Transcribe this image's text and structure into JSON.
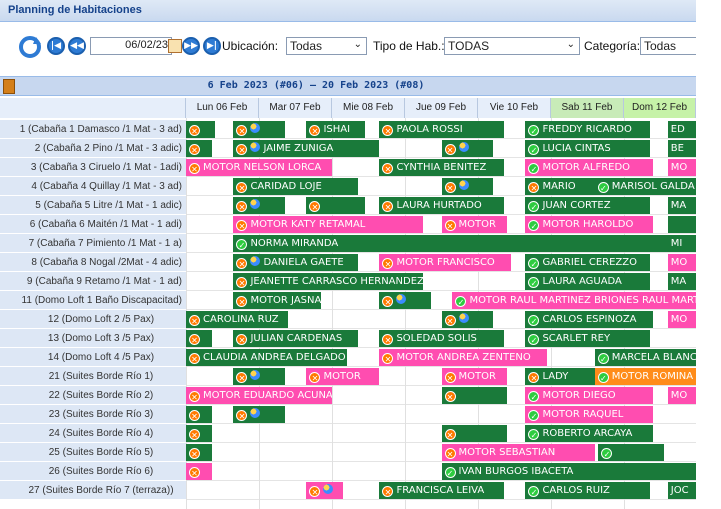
{
  "panel": {
    "title": "Planning de Habitaciones"
  },
  "toolbar": {
    "date": "06/02/23",
    "ubicacion_label": "Ubicación:",
    "ubicacion_value": "Todas",
    "tipo_label": "Tipo de Hab.:",
    "tipo_value": "TODAS",
    "categoria_label": "Categoría:",
    "categoria_value": "Todas"
  },
  "period": "6 Feb 2023 (#06) – 20 Feb 2023 (#08)",
  "days": [
    {
      "label": "Lun 06 Feb",
      "kind": "weekday"
    },
    {
      "label": "Mar 07 Feb",
      "kind": "weekday"
    },
    {
      "label": "Mie 08 Feb",
      "kind": "weekday"
    },
    {
      "label": "Jue 09 Feb",
      "kind": "weekday"
    },
    {
      "label": "Vie 10 Feb",
      "kind": "weekday"
    },
    {
      "label": "Sab 11 Feb",
      "kind": "sat"
    },
    {
      "label": "Dom 12 Feb",
      "kind": "sun"
    }
  ],
  "rooms": [
    {
      "label": "1 (Cabaña 1 Damasco /1 Mat - 3 ad)"
    },
    {
      "label": "2 (Cabaña 2 Pino /1 Mat - 3 adic)"
    },
    {
      "label": "3 (Cabaña 3 Ciruelo /1 Mat - 1adi)"
    },
    {
      "label": "4 (Cabaña 4 Quillay /1 Mat - 3 ad)"
    },
    {
      "label": "5 (Cabaña 5 Litre /1 Mat - 1 adic)"
    },
    {
      "label": "6 (Cabaña 6 Maitén /1 Mat - 1 adi)"
    },
    {
      "label": "7 (Cabaña 7 Pimiento /1 Mat - 1 a)"
    },
    {
      "label": "8 (Cabaña 8 Nogal /2Mat - 4 adic)"
    },
    {
      "label": "9 (Cabaña 9 Retamo /1 Mat - 1 ad)"
    },
    {
      "label": "11 (Domo Loft 1 Baño Discapacitad)"
    },
    {
      "label": "12 (Domo Loft 2 /5 Pax)",
      "indent": true
    },
    {
      "label": "13 (Domo Loft 3 /5 Pax)",
      "indent": true
    },
    {
      "label": "14 (Domo Loft 4 /5 Pax)",
      "indent": true
    },
    {
      "label": "21 (Suites Borde Río 1)",
      "indent": true
    },
    {
      "label": "22 (Suites Borde Río 2)",
      "indent": true
    },
    {
      "label": "23 (Suites Borde Río 3)",
      "indent": true
    },
    {
      "label": "24 (Suites Borde Río 4)",
      "indent": true
    },
    {
      "label": "25 (Suites Borde Río 5)",
      "indent": true
    },
    {
      "label": "26 (Suites Borde Río 6)",
      "indent": true
    },
    {
      "label": "27 (Suites Borde Río 7 (terraza))",
      "indent": true
    }
  ],
  "bookings": [
    {
      "row": 0,
      "start": 0,
      "len": 0.4,
      "color": "g",
      "icon": "x",
      "text": ""
    },
    {
      "row": 0,
      "start": 0.65,
      "len": 0.7,
      "color": "g",
      "icon": "x",
      "pax": true,
      "text": ""
    },
    {
      "row": 0,
      "start": 1.65,
      "len": 0.8,
      "color": "g",
      "icon": "x",
      "text": "ISHAI"
    },
    {
      "row": 0,
      "start": 2.65,
      "len": 1.7,
      "color": "g",
      "icon": "x",
      "text": "PAOLA ROSSI"
    },
    {
      "row": 0,
      "start": 4.65,
      "len": 1.7,
      "color": "g",
      "icon": "ok",
      "text": "FREDDY RICARDO"
    },
    {
      "row": 0,
      "start": 6.6,
      "len": 0.4,
      "color": "g",
      "icon": "",
      "text": "ED"
    },
    {
      "row": 1,
      "start": 0,
      "len": 0.35,
      "color": "g",
      "icon": "x",
      "text": ""
    },
    {
      "row": 1,
      "start": 0.65,
      "len": 2.0,
      "color": "g",
      "icon": "x",
      "pax": true,
      "text": "JAIME ZUNIGA"
    },
    {
      "row": 1,
      "start": 3.5,
      "len": 0.7,
      "color": "g",
      "icon": "x",
      "pax": true,
      "text": ""
    },
    {
      "row": 1,
      "start": 4.65,
      "len": 1.7,
      "color": "g",
      "icon": "ok",
      "text": "LUCIA CINTAS"
    },
    {
      "row": 1,
      "start": 6.6,
      "len": 0.4,
      "color": "g",
      "icon": "",
      "text": "BE"
    },
    {
      "row": 2,
      "start": 0,
      "len": 2.0,
      "color": "p",
      "icon": "x",
      "text": "MOTOR NELSON LORCA"
    },
    {
      "row": 2,
      "start": 2.65,
      "len": 1.7,
      "color": "g",
      "icon": "x",
      "text": "CYNTHIA BENITEZ"
    },
    {
      "row": 2,
      "start": 4.65,
      "len": 1.75,
      "color": "p",
      "icon": "ok",
      "text": "MOTOR ALFREDO"
    },
    {
      "row": 2,
      "start": 6.6,
      "len": 0.4,
      "color": "p",
      "icon": "",
      "text": "MO"
    },
    {
      "row": 3,
      "start": 0.65,
      "len": 1.7,
      "color": "g",
      "icon": "x",
      "text": "CARIDAD LOJE"
    },
    {
      "row": 3,
      "start": 3.5,
      "len": 0.7,
      "color": "g",
      "icon": "x",
      "pax": true,
      "text": ""
    },
    {
      "row": 3,
      "start": 4.65,
      "len": 0.95,
      "color": "g",
      "icon": "x",
      "text": "MARIO"
    },
    {
      "row": 3,
      "start": 5.6,
      "len": 1.4,
      "color": "g",
      "icon": "ok",
      "text": "MARISOL GALDA"
    },
    {
      "row": 4,
      "start": 0.65,
      "len": 0.7,
      "color": "g",
      "icon": "x",
      "pax": true,
      "text": ""
    },
    {
      "row": 4,
      "start": 1.65,
      "len": 0.8,
      "color": "g",
      "icon": "x",
      "text": ""
    },
    {
      "row": 4,
      "start": 2.65,
      "len": 1.7,
      "color": "g",
      "icon": "x",
      "text": "LAURA HURTADO"
    },
    {
      "row": 4,
      "start": 4.65,
      "len": 1.7,
      "color": "g",
      "icon": "ok",
      "text": "JUAN CORTEZ"
    },
    {
      "row": 4,
      "start": 6.6,
      "len": 0.4,
      "color": "g",
      "icon": "",
      "text": "MA"
    },
    {
      "row": 5,
      "start": 0.65,
      "len": 2.6,
      "color": "p",
      "icon": "x",
      "text": "MOTOR KATY RETAMAL"
    },
    {
      "row": 5,
      "start": 3.5,
      "len": 0.9,
      "color": "p",
      "icon": "x",
      "text": "MOTOR"
    },
    {
      "row": 5,
      "start": 4.65,
      "len": 1.75,
      "color": "p",
      "icon": "ok",
      "text": "MOTOR HAROLDO"
    },
    {
      "row": 5,
      "start": 6.6,
      "len": 0.4,
      "color": "g",
      "icon": "",
      "text": ""
    },
    {
      "row": 6,
      "start": 0.65,
      "len": 5.95,
      "color": "g",
      "icon": "ok",
      "text": "NORMA MIRANDA"
    },
    {
      "row": 6,
      "start": 6.6,
      "len": 0.4,
      "color": "g",
      "icon": "",
      "text": "MI"
    },
    {
      "row": 7,
      "start": 0.65,
      "len": 1.7,
      "color": "g",
      "icon": "x",
      "pax": true,
      "text": "DANIELA GAETE"
    },
    {
      "row": 7,
      "start": 2.65,
      "len": 1.8,
      "color": "p",
      "icon": "x",
      "text": "MOTOR FRANCISCO"
    },
    {
      "row": 7,
      "start": 4.65,
      "len": 1.7,
      "color": "g",
      "icon": "ok",
      "text": "GABRIEL CEREZZO"
    },
    {
      "row": 7,
      "start": 6.6,
      "len": 0.4,
      "color": "p",
      "icon": "",
      "text": "MO"
    },
    {
      "row": 8,
      "start": 0.65,
      "len": 2.6,
      "color": "g",
      "icon": "x",
      "text": "JEANETTE CARRASCO HERNANDEZ"
    },
    {
      "row": 8,
      "start": 4.65,
      "len": 1.7,
      "color": "g",
      "icon": "ok",
      "text": "LAURA AGUADA"
    },
    {
      "row": 8,
      "start": 6.6,
      "len": 0.4,
      "color": "g",
      "icon": "",
      "text": "MA"
    },
    {
      "row": 9,
      "start": 0.65,
      "len": 1.2,
      "color": "g",
      "icon": "x",
      "text": "MOTOR JASNA"
    },
    {
      "row": 9,
      "start": 2.65,
      "len": 0.7,
      "color": "g",
      "icon": "x",
      "pax": true,
      "text": ""
    },
    {
      "row": 9,
      "start": 3.65,
      "len": 3.35,
      "color": "p",
      "icon": "ok",
      "text": "MOTOR RAUL MARTINEZ BRIONES RAUL MARTI"
    },
    {
      "row": 10,
      "start": 0,
      "len": 1.4,
      "color": "g",
      "icon": "x",
      "text": "CAROLINA RUZ"
    },
    {
      "row": 10,
      "start": 3.5,
      "len": 0.7,
      "color": "g",
      "icon": "x",
      "pax": true,
      "text": ""
    },
    {
      "row": 10,
      "start": 4.65,
      "len": 1.75,
      "color": "g",
      "icon": "ok",
      "text": "CARLOS ESPINOZA"
    },
    {
      "row": 10,
      "start": 6.6,
      "len": 0.4,
      "color": "p",
      "icon": "",
      "text": "MO"
    },
    {
      "row": 11,
      "start": 0,
      "len": 0.35,
      "color": "g",
      "icon": "x",
      "text": ""
    },
    {
      "row": 11,
      "start": 0.65,
      "len": 1.7,
      "color": "g",
      "icon": "x",
      "text": "JULIAN CARDENAS"
    },
    {
      "row": 11,
      "start": 2.65,
      "len": 1.7,
      "color": "g",
      "icon": "x",
      "text": "SOLEDAD SOLIS"
    },
    {
      "row": 11,
      "start": 4.65,
      "len": 1.7,
      "color": "g",
      "icon": "ok",
      "text": "SCARLET REY"
    },
    {
      "row": 12,
      "start": 0,
      "len": 2.2,
      "color": "g",
      "icon": "x",
      "text": "CLAUDIA ANDREA DELGADO"
    },
    {
      "row": 12,
      "start": 2.65,
      "len": 2.3,
      "color": "p",
      "icon": "x",
      "text": "MOTOR ANDREA ZENTENO"
    },
    {
      "row": 12,
      "start": 5.6,
      "len": 1.4,
      "color": "g",
      "icon": "ok",
      "text": "MARCELA BLANC"
    },
    {
      "row": 13,
      "start": 0.65,
      "len": 0.7,
      "color": "g",
      "icon": "x",
      "pax": true,
      "text": ""
    },
    {
      "row": 13,
      "start": 1.65,
      "len": 1.0,
      "color": "p",
      "icon": "x",
      "text": "MOTOR"
    },
    {
      "row": 13,
      "start": 3.5,
      "len": 0.9,
      "color": "p",
      "icon": "x",
      "text": "MOTOR"
    },
    {
      "row": 13,
      "start": 4.65,
      "len": 0.95,
      "color": "g",
      "icon": "x",
      "text": "LADY"
    },
    {
      "row": 13,
      "start": 5.6,
      "len": 1.4,
      "color": "o",
      "icon": "ok",
      "text": "MOTOR ROMINA"
    },
    {
      "row": 14,
      "start": 0,
      "len": 2.0,
      "color": "p",
      "icon": "x",
      "text": "MOTOR EDUARDO ACUNA"
    },
    {
      "row": 14,
      "start": 3.5,
      "len": 0.9,
      "color": "g",
      "icon": "x",
      "text": ""
    },
    {
      "row": 14,
      "start": 4.65,
      "len": 1.75,
      "color": "p",
      "icon": "ok",
      "text": "MOTOR DIEGO"
    },
    {
      "row": 14,
      "start": 6.6,
      "len": 0.4,
      "color": "p",
      "icon": "",
      "text": "MO"
    },
    {
      "row": 15,
      "start": 0,
      "len": 0.35,
      "color": "g",
      "icon": "x",
      "text": ""
    },
    {
      "row": 15,
      "start": 0.65,
      "len": 0.7,
      "color": "g",
      "icon": "x",
      "pax": true,
      "text": ""
    },
    {
      "row": 15,
      "start": 4.65,
      "len": 1.75,
      "color": "p",
      "icon": "ok",
      "text": "MOTOR RAQUEL"
    },
    {
      "row": 16,
      "start": 0,
      "len": 0.35,
      "color": "g",
      "icon": "x",
      "text": ""
    },
    {
      "row": 16,
      "start": 3.5,
      "len": 0.9,
      "color": "g",
      "icon": "x",
      "text": ""
    },
    {
      "row": 16,
      "start": 4.65,
      "len": 1.75,
      "color": "g",
      "icon": "ok",
      "text": "ROBERTO ARCAYA"
    },
    {
      "row": 17,
      "start": 0,
      "len": 0.35,
      "color": "g",
      "icon": "x",
      "text": ""
    },
    {
      "row": 17,
      "start": 3.5,
      "len": 2.1,
      "color": "p",
      "icon": "x",
      "text": "MOTOR SEBASTIAN"
    },
    {
      "row": 17,
      "start": 5.65,
      "len": 0.9,
      "color": "g",
      "icon": "ok",
      "text": ""
    },
    {
      "row": 18,
      "start": 0,
      "len": 0.35,
      "color": "p",
      "icon": "x",
      "text": ""
    },
    {
      "row": 18,
      "start": 3.5,
      "len": 3.5,
      "color": "g",
      "icon": "ok",
      "text": "IVAN BURGOS IBACETA"
    },
    {
      "row": 19,
      "start": 1.65,
      "len": 0.5,
      "color": "p",
      "icon": "x",
      "pax": true,
      "text": ""
    },
    {
      "row": 19,
      "start": 2.65,
      "len": 1.7,
      "color": "g",
      "icon": "x",
      "text": "FRANCISCA LEIVA"
    },
    {
      "row": 19,
      "start": 4.65,
      "len": 1.7,
      "color": "g",
      "icon": "ok",
      "text": "CARLOS RUIZ"
    },
    {
      "row": 19,
      "start": 6.6,
      "len": 0.4,
      "color": "g",
      "icon": "",
      "text": "JOC"
    }
  ],
  "colors": {
    "green": "#1a7a3a",
    "pink": "#ff4db0",
    "orange": "#ff8c1a",
    "purple": "#8a2be2",
    "header": "#c7d7ef"
  }
}
